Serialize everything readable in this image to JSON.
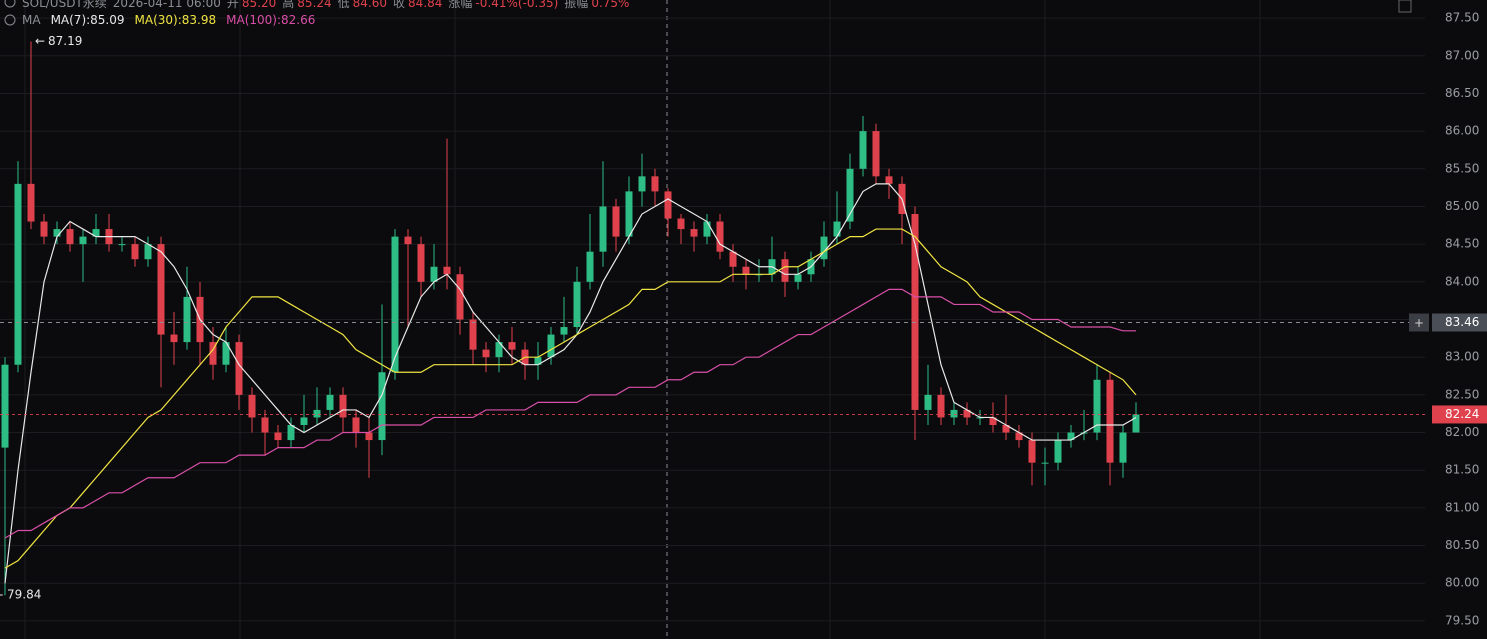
{
  "chart_data": {
    "type": "candlestick",
    "header": {
      "symbol": "SOL/USDT永续",
      "time": "2026-04-11 06:00",
      "fields": [
        {
          "label": "开",
          "value": "85.20"
        },
        {
          "label": "高",
          "value": "85.24"
        },
        {
          "label": "低",
          "value": "84.60"
        },
        {
          "label": "收",
          "value": "84.84"
        },
        {
          "label": "涨幅",
          "value": "-0.41%(-0.35)"
        },
        {
          "label": "振幅",
          "value": "0.75%"
        }
      ]
    },
    "indicator": "MA",
    "up_color": "#2ebd85",
    "down_color": "#e0424d",
    "open": [
      81.8,
      82.9,
      85.3,
      84.8,
      84.6,
      84.7,
      84.5,
      84.6,
      84.7,
      84.5,
      84.5,
      84.3,
      84.5,
      83.3,
      83.2,
      83.8,
      83.2,
      82.9,
      83.2,
      82.5,
      82.2,
      82.0,
      81.9,
      82.1,
      82.2,
      82.3,
      82.5,
      82.2,
      82.0,
      81.9,
      82.8,
      84.6,
      84.5,
      84.0,
      84.2,
      84.1,
      83.5,
      83.1,
      83.0,
      83.2,
      83.1,
      82.9,
      83.0,
      83.3,
      83.4,
      84.0,
      84.4,
      85.0,
      84.6,
      85.2,
      85.4,
      85.2,
      84.84,
      84.7,
      84.6,
      84.8,
      84.4,
      84.2,
      84.1,
      84.1,
      84.3,
      84.0,
      84.1,
      84.3,
      84.6,
      84.8,
      85.5,
      86.0,
      85.4,
      85.3,
      84.9,
      82.3,
      82.5,
      82.2,
      82.3,
      82.2,
      82.2,
      82.1,
      82.0,
      81.9,
      81.6,
      81.6,
      81.9,
      82.0,
      82.0,
      82.7,
      81.6,
      82.0
    ],
    "high": [
      83.0,
      85.6,
      87.19,
      84.9,
      84.8,
      84.8,
      84.7,
      84.9,
      84.9,
      84.6,
      84.6,
      84.6,
      84.6,
      83.6,
      84.2,
      84.0,
      83.4,
      83.4,
      83.3,
      82.6,
      82.3,
      82.1,
      82.2,
      82.5,
      82.6,
      82.6,
      82.6,
      82.3,
      82.2,
      83.7,
      84.7,
      84.7,
      84.6,
      84.5,
      85.9,
      84.2,
      83.6,
      83.2,
      83.3,
      83.4,
      83.2,
      83.2,
      83.4,
      83.8,
      84.2,
      84.9,
      85.6,
      85.1,
      85.4,
      85.7,
      85.5,
      85.24,
      84.9,
      84.8,
      84.9,
      84.9,
      84.5,
      84.3,
      84.3,
      84.6,
      84.4,
      84.2,
      84.4,
      84.8,
      85.2,
      85.7,
      86.2,
      86.1,
      85.5,
      85.4,
      85.0,
      82.9,
      82.6,
      82.4,
      82.4,
      82.3,
      82.4,
      82.5,
      82.1,
      82.0,
      81.8,
      82.0,
      82.1,
      82.3,
      82.9,
      82.8,
      82.1,
      82.4
    ],
    "low": [
      79.84,
      82.8,
      84.7,
      84.5,
      84.5,
      84.4,
      84.0,
      84.5,
      84.4,
      84.4,
      84.2,
      84.2,
      82.6,
      82.9,
      83.1,
      82.9,
      82.7,
      82.8,
      82.3,
      82.0,
      81.7,
      81.8,
      81.8,
      82.0,
      82.1,
      82.2,
      82.0,
      81.8,
      81.4,
      81.7,
      82.7,
      83.4,
      83.8,
      83.9,
      83.9,
      83.3,
      82.9,
      82.8,
      82.8,
      82.9,
      82.7,
      82.7,
      82.9,
      83.2,
      83.3,
      83.9,
      84.2,
      84.4,
      84.5,
      85.0,
      85.0,
      84.6,
      84.5,
      84.4,
      84.5,
      84.3,
      84.0,
      83.9,
      84.0,
      84.0,
      83.8,
      83.9,
      84.0,
      84.2,
      84.5,
      84.7,
      85.4,
      85.3,
      85.1,
      84.5,
      81.9,
      82.1,
      82.1,
      82.1,
      82.1,
      82.1,
      82.0,
      81.9,
      81.8,
      81.3,
      81.3,
      81.5,
      81.8,
      81.9,
      81.9,
      81.3,
      81.4,
      82.0
    ],
    "close": [
      82.9,
      85.3,
      84.8,
      84.6,
      84.7,
      84.5,
      84.6,
      84.7,
      84.5,
      84.5,
      84.3,
      84.5,
      83.3,
      83.2,
      83.8,
      83.2,
      82.9,
      83.2,
      82.5,
      82.2,
      82.0,
      81.9,
      82.1,
      82.2,
      82.3,
      82.5,
      82.2,
      82.0,
      81.9,
      82.8,
      84.6,
      84.5,
      84.0,
      84.2,
      84.1,
      83.5,
      83.1,
      83.0,
      83.2,
      83.1,
      82.9,
      83.0,
      83.3,
      83.4,
      84.0,
      84.4,
      85.0,
      84.6,
      85.2,
      85.4,
      85.2,
      84.84,
      84.7,
      84.6,
      84.8,
      84.4,
      84.2,
      84.1,
      84.1,
      84.3,
      84.0,
      84.1,
      84.3,
      84.6,
      84.8,
      85.5,
      86.0,
      85.4,
      85.3,
      84.9,
      82.3,
      82.5,
      82.2,
      82.3,
      82.2,
      82.2,
      82.1,
      82.0,
      81.9,
      81.6,
      81.6,
      81.9,
      82.0,
      82.0,
      82.7,
      81.6,
      82.0,
      82.24
    ],
    "series": [
      {
        "name": "MA(7):85.09",
        "color": "#e8e8e8",
        "values": [
          80.0,
          81.5,
          82.8,
          84.0,
          84.6,
          84.8,
          84.7,
          84.6,
          84.6,
          84.6,
          84.6,
          84.5,
          84.4,
          84.2,
          83.9,
          83.5,
          83.3,
          83.2,
          82.9,
          82.7,
          82.5,
          82.3,
          82.1,
          82.0,
          82.1,
          82.2,
          82.3,
          82.3,
          82.2,
          82.5,
          83.0,
          83.4,
          83.8,
          84.0,
          84.1,
          83.9,
          83.6,
          83.4,
          83.2,
          83.0,
          82.9,
          82.9,
          83.0,
          83.1,
          83.3,
          83.6,
          84.0,
          84.3,
          84.6,
          84.9,
          85.0,
          85.1,
          85.0,
          84.9,
          84.8,
          84.5,
          84.4,
          84.3,
          84.2,
          84.2,
          84.1,
          84.1,
          84.2,
          84.4,
          84.6,
          84.9,
          85.2,
          85.3,
          85.3,
          85.1,
          84.5,
          83.7,
          82.9,
          82.4,
          82.3,
          82.2,
          82.2,
          82.1,
          82.0,
          81.9,
          81.9,
          81.9,
          81.9,
          82.0,
          82.1,
          82.1,
          82.1,
          82.2
        ]
      },
      {
        "name": "MA(30):83.98",
        "color": "#f0e442",
        "values": [
          80.2,
          80.3,
          80.5,
          80.7,
          80.9,
          81.0,
          81.2,
          81.4,
          81.6,
          81.8,
          82.0,
          82.2,
          82.3,
          82.5,
          82.7,
          82.9,
          83.1,
          83.4,
          83.6,
          83.8,
          83.8,
          83.8,
          83.7,
          83.6,
          83.5,
          83.4,
          83.3,
          83.1,
          83.0,
          82.9,
          82.8,
          82.8,
          82.8,
          82.9,
          82.9,
          82.9,
          82.9,
          82.9,
          82.9,
          82.9,
          83.0,
          83.0,
          83.1,
          83.2,
          83.3,
          83.4,
          83.5,
          83.6,
          83.7,
          83.9,
          83.9,
          84.0,
          84.0,
          84.0,
          84.0,
          84.0,
          84.1,
          84.1,
          84.1,
          84.1,
          84.2,
          84.2,
          84.3,
          84.4,
          84.5,
          84.6,
          84.6,
          84.7,
          84.7,
          84.7,
          84.6,
          84.4,
          84.2,
          84.1,
          84.0,
          83.8,
          83.7,
          83.6,
          83.5,
          83.4,
          83.3,
          83.2,
          83.1,
          83.0,
          82.9,
          82.8,
          82.7,
          82.5
        ]
      },
      {
        "name": "MA(100):82.66",
        "color": "#d94fa8",
        "values": [
          80.6,
          80.7,
          80.7,
          80.8,
          80.9,
          81.0,
          81.0,
          81.1,
          81.2,
          81.2,
          81.3,
          81.4,
          81.4,
          81.4,
          81.5,
          81.6,
          81.6,
          81.6,
          81.7,
          81.7,
          81.7,
          81.8,
          81.8,
          81.8,
          81.9,
          81.9,
          82.0,
          82.0,
          82.0,
          82.1,
          82.1,
          82.1,
          82.1,
          82.2,
          82.2,
          82.2,
          82.2,
          82.3,
          82.3,
          82.3,
          82.3,
          82.4,
          82.4,
          82.4,
          82.4,
          82.5,
          82.5,
          82.5,
          82.6,
          82.6,
          82.6,
          82.7,
          82.7,
          82.8,
          82.8,
          82.9,
          82.9,
          83.0,
          83.0,
          83.1,
          83.2,
          83.3,
          83.3,
          83.4,
          83.5,
          83.6,
          83.7,
          83.8,
          83.9,
          83.9,
          83.8,
          83.8,
          83.8,
          83.7,
          83.7,
          83.7,
          83.6,
          83.6,
          83.6,
          83.5,
          83.5,
          83.5,
          83.4,
          83.4,
          83.4,
          83.4,
          83.35,
          83.35
        ]
      }
    ],
    "crosshair_price": 83.46,
    "ylim": [
      79.26,
      87.74
    ],
    "yticks": [
      {
        "value": 79.5,
        "label": "79.50"
      },
      {
        "value": 80,
        "label": "80.00"
      },
      {
        "value": 80.5,
        "label": "80.50"
      },
      {
        "value": 81,
        "label": "81.00"
      },
      {
        "value": 81.5,
        "label": "81.50"
      },
      {
        "value": 82,
        "label": "82.00"
      },
      {
        "value": 82.5,
        "label": "82.50"
      },
      {
        "value": 83,
        "label": "83.00"
      },
      {
        "value": 83.5,
        "label": "83.50"
      },
      {
        "value": 84,
        "label": "84.00"
      },
      {
        "value": 84.5,
        "label": "84.50"
      },
      {
        "value": 85,
        "label": "85.00"
      },
      {
        "value": 85.5,
        "label": "85.50"
      },
      {
        "value": 86,
        "label": "86.00"
      },
      {
        "value": 86.5,
        "label": "86.50"
      },
      {
        "value": 87,
        "label": "87.00"
      },
      {
        "value": 87.5,
        "label": "87.50"
      }
    ],
    "grid": true
  }
}
